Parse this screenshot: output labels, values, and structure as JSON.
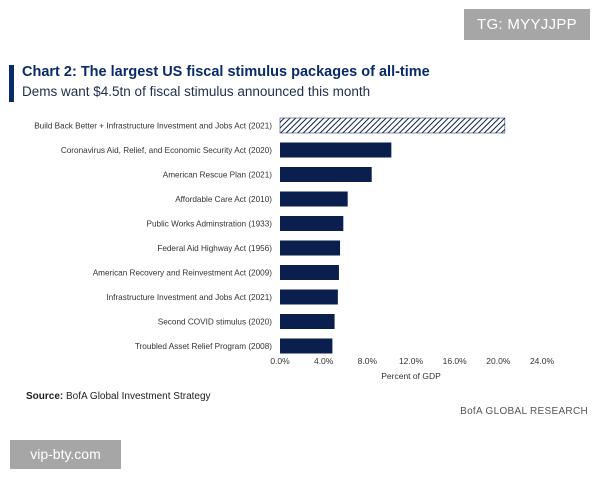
{
  "watermark_top": "TG: MYYJJPP",
  "watermark_bottom": "vip-bty.com",
  "header": {
    "title": "Chart 2: The largest US fiscal stimulus packages of all-time",
    "subtitle": "Dems want $4.5tn of fiscal stimulus announced this month"
  },
  "footer": {
    "source_label": "Source:",
    "source_text": "BofA Global Investment Strategy",
    "publisher": "BofA GLOBAL RESEARCH"
  },
  "colors": {
    "bar": "#0a1f4d",
    "accent": "#0a2a6b",
    "hatch": "#0a1f4d"
  },
  "chart_data": {
    "type": "bar",
    "orientation": "horizontal",
    "categories": [
      "Build Back Better + Infrastructure Investment and Jobs Act (2021)",
      "Coronavirus Aid, Relief, and Economic Security Act (2020)",
      "American Rescue Plan (2021)",
      "Affordable Care Act (2010)",
      "Public Works Adminstration (1933)",
      "Federal Aid Highway Act (1956)",
      "American Recovery and Reinvestment Act (2009)",
      "Infrastructure Investment and Jobs Act (2021)",
      "Second COVID stimulus (2020)",
      "Troubled Asset Relief Program (2008)"
    ],
    "values": [
      20.6,
      10.2,
      8.4,
      6.2,
      5.8,
      5.5,
      5.4,
      5.3,
      5.0,
      4.8
    ],
    "hatched": [
      true,
      false,
      false,
      false,
      false,
      false,
      false,
      false,
      false,
      false
    ],
    "xlabel": "Percent of GDP",
    "xlim": [
      0,
      24
    ],
    "xticks": [
      "0.0%",
      "4.0%",
      "8.0%",
      "12.0%",
      "16.0%",
      "20.0%",
      "24.0%"
    ],
    "xtick_values": [
      0,
      4,
      8,
      12,
      16,
      20,
      24
    ],
    "grid": false,
    "legend": "none"
  }
}
